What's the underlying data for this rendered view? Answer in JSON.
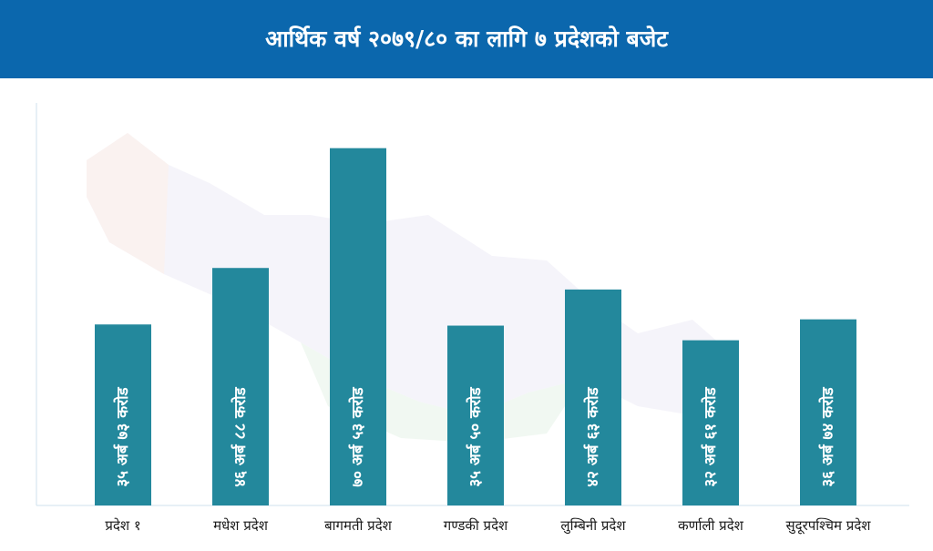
{
  "title": "आर्थिक वर्ष २०७९/८० का लागि ७ प्रदेशको बजेट",
  "colors": {
    "header": "#0b67ad",
    "bar": "#23889c",
    "bar_text": "#ffffff",
    "axis": "#cfe1ee",
    "label": "#1a1a1a"
  },
  "chart_data": {
    "type": "bar",
    "title": "आर्थिक वर्ष २०७९/८० का लागि ७ प्रदेशको बजेट",
    "xlabel": "",
    "ylabel": "",
    "unit": "अर्ब रुपैयाँ",
    "ylim": [
      0,
      80
    ],
    "grid": false,
    "categories": [
      "प्रदेश  १",
      "मधेश प्रदेश",
      "बागमती प्रदेश",
      "गण्डकी प्रदेश",
      "लुम्बिनी प्रदेश",
      "कर्णाली प्रदेश",
      "सुदूरपश्चिम प्रदेश"
    ],
    "values": [
      35.73,
      46.88,
      70.53,
      35.5,
      42.63,
      32.61,
      36.74
    ],
    "data_labels": [
      "३५ अर्ब ७३ करोड",
      "४६ अर्ब ८८ करोड",
      "७० अर्ब ५३ करोड",
      "३५ अर्ब ५० करोड",
      "४२ अर्ब ६३ करोड",
      "३२ अर्ब ६१ करोड",
      "३६ अर्ब ७४ करोड"
    ]
  }
}
